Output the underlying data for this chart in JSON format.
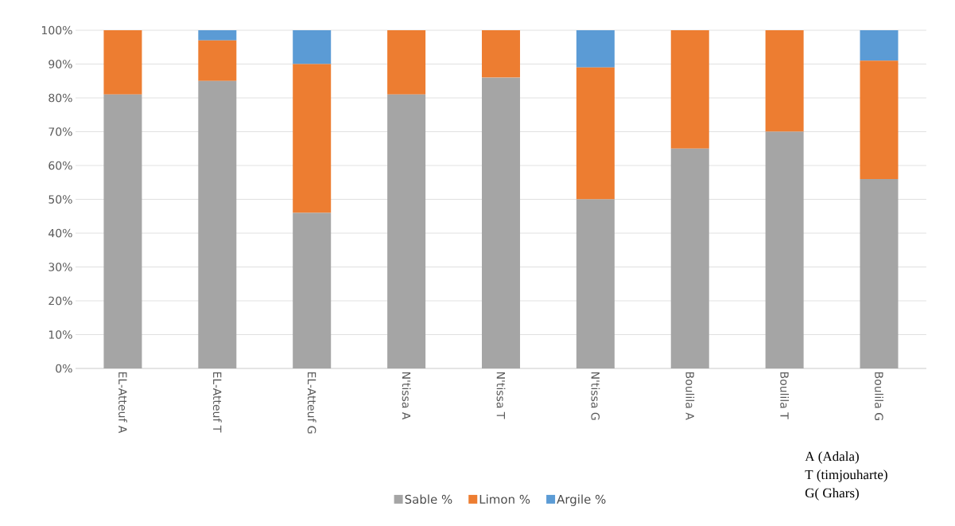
{
  "chart_data": {
    "type": "bar",
    "stacked": true,
    "categories": [
      "EL-Atteuf A",
      "EL-Atteuf T",
      "EL-Atteuf G",
      "N'tissa A",
      "N'tissa T",
      "N'tissa G",
      "Boulila A",
      "Boulila T",
      "Boulila G"
    ],
    "series": [
      {
        "name": "Sable %",
        "color": "#a5a5a5",
        "values": [
          81,
          85,
          46,
          81,
          86,
          50,
          65,
          70,
          56
        ]
      },
      {
        "name": "Limon %",
        "color": "#ed7d31",
        "values": [
          19,
          12,
          44,
          19,
          14,
          39,
          35,
          30,
          35
        ]
      },
      {
        "name": "Argile %",
        "color": "#5b9bd5",
        "values": [
          0,
          3,
          10,
          0,
          0,
          11,
          0,
          0,
          9
        ]
      }
    ],
    "ylim": [
      0,
      100
    ],
    "yticks": [
      {
        "value": 0,
        "label": "0%"
      },
      {
        "value": 10,
        "label": "10%"
      },
      {
        "value": 20,
        "label": "20%"
      },
      {
        "value": 30,
        "label": "30%"
      },
      {
        "value": 40,
        "label": "40%"
      },
      {
        "value": 50,
        "label": "50%"
      },
      {
        "value": 60,
        "label": "60%"
      },
      {
        "value": 70,
        "label": "70%"
      },
      {
        "value": 80,
        "label": "80%"
      },
      {
        "value": 90,
        "label": "90%"
      },
      {
        "value": 100,
        "label": "100%"
      }
    ],
    "grid": "y",
    "legend": "bottom",
    "annotations": [
      "A (Adala)",
      "T (timjouharte)",
      "G( Ghars)"
    ]
  }
}
